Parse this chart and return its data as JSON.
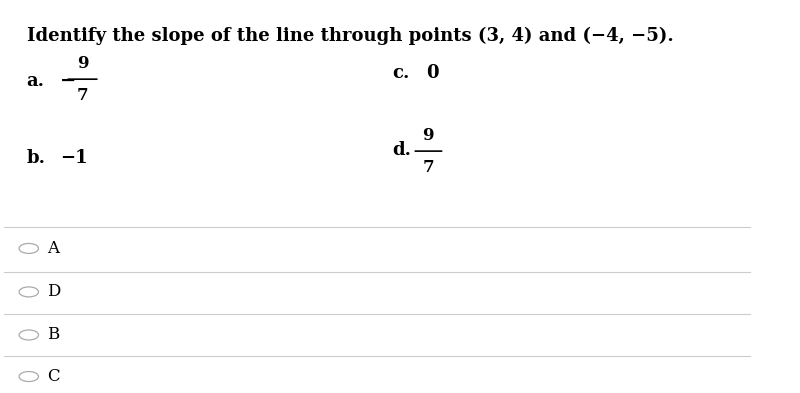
{
  "title": "Identify the slope of the line through points (3, 4) and (−4, −5).",
  "option_a_label": "a.",
  "option_a_num": "9",
  "option_a_den": "7",
  "option_a_neg": true,
  "option_b_label": "b.",
  "option_b_val": "−1",
  "option_c_label": "c.",
  "option_c_val": "0",
  "option_d_label": "d.",
  "option_d_num": "9",
  "option_d_den": "7",
  "answer_choices": [
    "A",
    "D",
    "B",
    "C"
  ],
  "bg_color": "#ffffff",
  "text_color": "#000000",
  "divider_color": "#cccccc",
  "font_size_title": 13,
  "font_size_options": 13,
  "font_size_answers": 12
}
